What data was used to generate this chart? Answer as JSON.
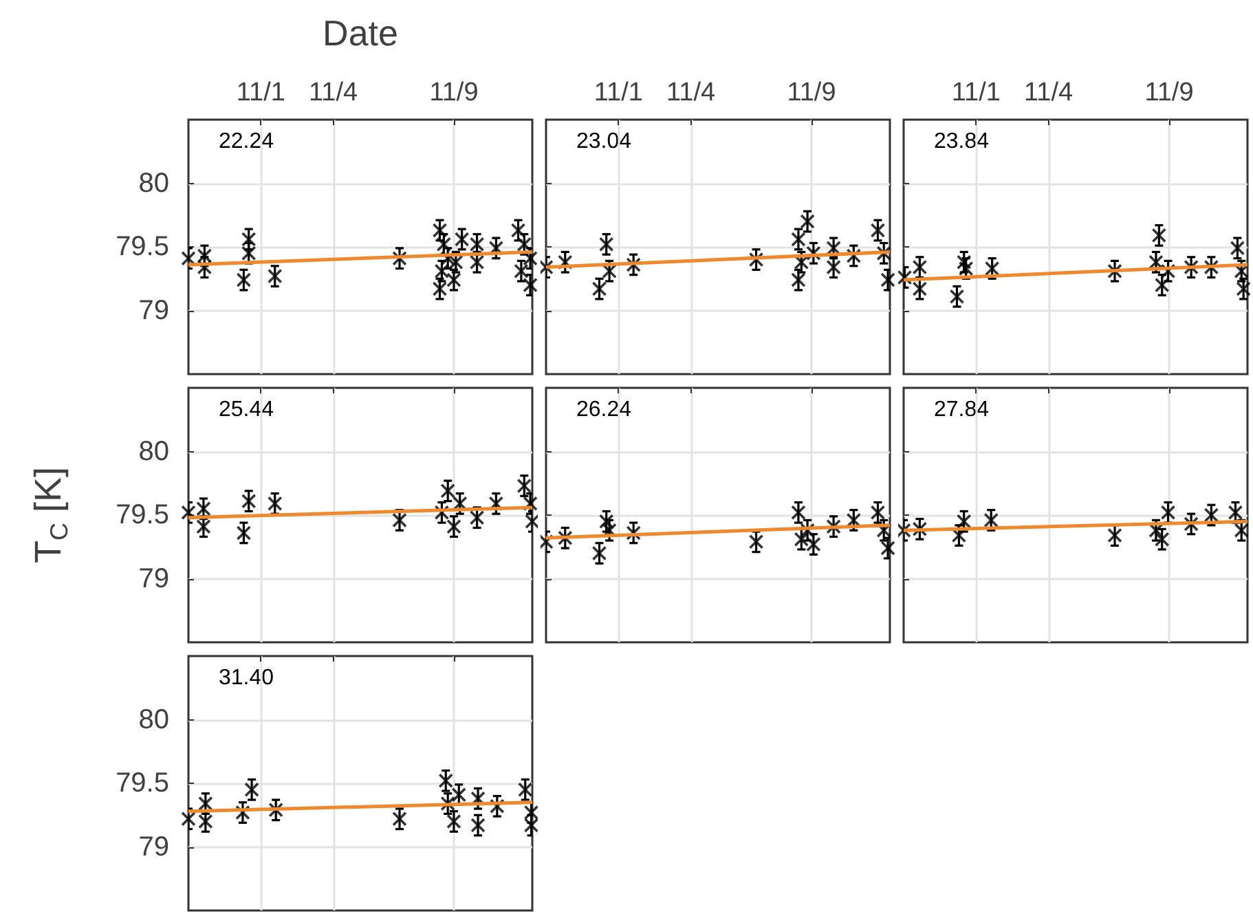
{
  "chart_data": [
    {
      "type": "scatter",
      "xlabel": "Date",
      "annotations": [
        "22.24"
      ],
      "xlim": [
        "--10-29T00:00",
        "--11-12T06:00"
      ],
      "xticks": [
        {
          "value": "--11-01",
          "label": "11/1"
        },
        {
          "value": "--11-04",
          "label": "11/4"
        },
        {
          "value": "--11-09",
          "label": "11/9"
        }
      ],
      "ylim": [
        78.5,
        80.5
      ],
      "yticks": [
        79,
        79.5,
        80
      ],
      "grid": true,
      "series": [
        {
          "marker": "cross",
          "color": "#000000",
          "x": [
            "--10-29T00:00",
            "--10-29T16:00",
            "--10-29T16:00",
            "--10-31T07:00",
            "--10-31T12:00",
            "--10-31T12:00",
            "--11-01T14:00",
            "--11-06T18:00",
            "--11-08T10:00",
            "--11-08T14:00",
            "--11-08T18:00",
            "--11-08T12:00",
            "--11-09T02:00",
            "--11-08T10:00",
            "--11-09T08:00",
            "--11-09T00:00",
            "--11-09T23:00",
            "--11-09T23:00",
            "--11-10T18:00",
            "--11-11T16:00",
            "--11-11T22:00",
            "--11-12T04:00",
            "--11-12T04:00",
            "--11-11T19:00"
          ],
          "values": [
            79.41,
            79.43,
            79.34,
            79.24,
            79.56,
            79.45,
            79.27,
            79.41,
            79.63,
            79.52,
            79.41,
            79.31,
            79.38,
            79.17,
            79.56,
            79.24,
            79.52,
            79.38,
            79.49,
            79.63,
            79.52,
            79.41,
            79.2,
            79.31
          ],
          "errors": [
            0.08,
            0.08,
            0.08,
            0.08,
            0.08,
            0.08,
            0.08,
            0.08,
            0.08,
            0.08,
            0.08,
            0.08,
            0.08,
            0.08,
            0.08,
            0.08,
            0.08,
            0.08,
            0.08,
            0.08,
            0.08,
            0.08,
            0.08,
            0.08
          ]
        },
        {
          "type": "line",
          "color": "#ee8a2d",
          "line_style": "solid",
          "x": [
            "--10-29T00:00",
            "--11-12T06:00"
          ],
          "values": [
            79.36,
            79.46
          ]
        }
      ]
    },
    {
      "type": "scatter",
      "annotations": [
        "23.04"
      ],
      "tick_labels": "x",
      "xlim": [
        "--10-29T00:00",
        "--11-12T06:00"
      ],
      "xticks": [
        {
          "value": "--11-01",
          "label": "11/1"
        },
        {
          "value": "--11-04",
          "label": "11/4"
        },
        {
          "value": "--11-09",
          "label": "11/9"
        }
      ],
      "ylim": [
        78.5,
        80.5
      ],
      "yticks": [
        79,
        79.5,
        80
      ],
      "grid": true,
      "series": [
        {
          "marker": "cross",
          "color": "#000000",
          "x": [
            "--10-29T00:00",
            "--10-29T19:00",
            "--10-31T05:00",
            "--10-31T12:00",
            "--10-31T15:00",
            "--11-01T15:00",
            "--11-06T17:00",
            "--11-08T11:00",
            "--11-08T20:00",
            "--11-08T14:00",
            "--11-08T11:00",
            "--11-09T02:00",
            "--11-09T22:00",
            "--11-09T22:00",
            "--11-10T18:00",
            "--11-11T18:00",
            "--11-12T00:00",
            "--11-12T04:00"
          ],
          "values": [
            79.34,
            79.38,
            79.17,
            79.52,
            79.31,
            79.36,
            79.4,
            79.56,
            79.7,
            79.38,
            79.24,
            79.45,
            79.49,
            79.34,
            79.43,
            79.63,
            79.45,
            79.24
          ],
          "errors": [
            0.08,
            0.08,
            0.08,
            0.08,
            0.08,
            0.08,
            0.08,
            0.08,
            0.08,
            0.08,
            0.08,
            0.08,
            0.08,
            0.08,
            0.08,
            0.08,
            0.08,
            0.08
          ]
        },
        {
          "type": "line",
          "color": "#ee8a2d",
          "line_style": "solid",
          "x": [
            "--10-29T00:00",
            "--11-12T06:00"
          ],
          "values": [
            79.34,
            79.46
          ]
        }
      ]
    },
    {
      "type": "scatter",
      "annotations": [
        "23.84"
      ],
      "tick_labels": "x",
      "xlim": [
        "--10-29T00:00",
        "--11-12T06:00"
      ],
      "xticks": [
        {
          "value": "--11-01",
          "label": "11/1"
        },
        {
          "value": "--11-04",
          "label": "11/4"
        },
        {
          "value": "--11-09",
          "label": "11/9"
        }
      ],
      "ylim": [
        78.5,
        80.5
      ],
      "yticks": [
        79,
        79.5,
        80
      ],
      "grid": true,
      "series": [
        {
          "marker": "cross",
          "color": "#000000",
          "x": [
            "--10-29T01:00",
            "--10-29T16:00",
            "--10-29T16:00",
            "--10-31T05:00",
            "--10-31T12:00",
            "--10-31T14:00",
            "--11-01T16:00",
            "--11-06T18:00",
            "--11-08T14:00",
            "--11-08T11:00",
            "--11-08T17:00",
            "--11-08T23:00",
            "--11-09T22:00",
            "--11-10T18:00",
            "--11-11T20:00",
            "--11-12T00:00",
            "--11-12T02:00"
          ],
          "values": [
            79.26,
            79.34,
            79.17,
            79.11,
            79.38,
            79.33,
            79.33,
            79.31,
            79.59,
            79.38,
            79.2,
            79.31,
            79.34,
            79.34,
            79.49,
            79.31,
            79.17
          ],
          "errors": [
            0.08,
            0.08,
            0.08,
            0.08,
            0.08,
            0.08,
            0.08,
            0.08,
            0.08,
            0.08,
            0.08,
            0.08,
            0.08,
            0.08,
            0.08,
            0.08,
            0.08
          ]
        },
        {
          "type": "line",
          "color": "#ee8a2d",
          "line_style": "solid",
          "x": [
            "--10-29T00:00",
            "--11-12T06:00"
          ],
          "values": [
            79.24,
            79.36
          ]
        }
      ]
    },
    {
      "type": "scatter",
      "ylabel": "T$_{C}$ [K]",
      "annotations": [
        "25.44"
      ],
      "tick_labels": "y",
      "xlim": [
        "--10-29T00:00",
        "--11-12T06:00"
      ],
      "xticks": [
        "--11-01",
        "--11-04",
        "--11-09"
      ],
      "ylim": [
        78.5,
        80.5
      ],
      "yticks": [
        79,
        79.5,
        80
      ],
      "grid": true,
      "series": [
        {
          "marker": "cross",
          "color": "#000000",
          "x": [
            "--10-29T00:00",
            "--10-29T15:00",
            "--10-29T15:00",
            "--10-31T07:00",
            "--10-31T12:00",
            "--11-01T14:00",
            "--11-06T18:00",
            "--11-08T18:00",
            "--11-08T12:00",
            "--11-09T00:00",
            "--11-09T06:00",
            "--11-09T23:00",
            "--11-10T18:00",
            "--11-11T22:00",
            "--11-12T04:00",
            "--11-12T06:00"
          ],
          "values": [
            79.52,
            79.55,
            79.41,
            79.36,
            79.61,
            79.59,
            79.46,
            79.69,
            79.52,
            79.41,
            79.59,
            79.48,
            79.59,
            79.73,
            79.59,
            79.45
          ],
          "errors": [
            0.08,
            0.08,
            0.08,
            0.08,
            0.08,
            0.08,
            0.08,
            0.08,
            0.08,
            0.08,
            0.08,
            0.08,
            0.08,
            0.08,
            0.08,
            0.08
          ]
        },
        {
          "type": "line",
          "color": "#ee8a2d",
          "line_style": "solid",
          "x": [
            "--10-29T00:00",
            "--11-12T06:00"
          ],
          "values": [
            79.48,
            79.56
          ]
        }
      ]
    },
    {
      "type": "scatter",
      "annotations": [
        "26.24"
      ],
      "tick_labels": false,
      "xlim": [
        "--10-29T00:00",
        "--11-12T06:00"
      ],
      "xticks": [
        "--11-01",
        "--11-04",
        "--11-09"
      ],
      "ylim": [
        78.5,
        80.5
      ],
      "yticks": [
        79,
        79.5,
        80
      ],
      "grid": true,
      "series": [
        {
          "marker": "cross",
          "color": "#000000",
          "x": [
            "--10-29T00:00",
            "--10-29T19:00",
            "--10-31T05:00",
            "--10-31T12:00",
            "--10-31T15:00",
            "--11-01T15:00",
            "--11-06T17:00",
            "--11-08T11:00",
            "--11-08T20:00",
            "--11-09T02:00",
            "--11-08T14:00",
            "--11-09T22:00",
            "--11-10T18:00",
            "--11-11T18:00",
            "--11-12T00:00",
            "--11-12T04:00"
          ],
          "values": [
            79.29,
            79.32,
            79.2,
            79.45,
            79.38,
            79.36,
            79.29,
            79.52,
            79.38,
            79.27,
            79.31,
            79.41,
            79.46,
            79.52,
            79.38,
            79.24
          ],
          "errors": [
            0.08,
            0.08,
            0.08,
            0.08,
            0.08,
            0.08,
            0.08,
            0.08,
            0.08,
            0.08,
            0.08,
            0.08,
            0.08,
            0.08,
            0.08,
            0.08
          ]
        },
        {
          "type": "line",
          "color": "#ee8a2d",
          "line_style": "solid",
          "x": [
            "--10-29T00:00",
            "--11-12T06:00"
          ],
          "values": [
            79.32,
            79.42
          ]
        }
      ]
    },
    {
      "type": "scatter",
      "annotations": [
        "27.84"
      ],
      "tick_labels": false,
      "xlim": [
        "--10-29T00:00",
        "--11-12T06:00"
      ],
      "xticks": [
        "--11-01",
        "--11-04",
        "--11-09"
      ],
      "ylim": [
        78.5,
        80.5
      ],
      "yticks": [
        79,
        79.5,
        80
      ],
      "grid": true,
      "series": [
        {
          "marker": "cross",
          "color": "#000000",
          "x": [
            "--10-29T00:00",
            "--10-29T16:00",
            "--10-31T07:00",
            "--10-31T12:00",
            "--11-01T15:00",
            "--11-06T18:00",
            "--11-08T23:00",
            "--11-08T11:00",
            "--11-08T17:00",
            "--11-09T22:00",
            "--11-10T18:00",
            "--11-11T18:00",
            "--11-12T00:00"
          ],
          "values": [
            79.38,
            79.39,
            79.34,
            79.45,
            79.46,
            79.34,
            79.52,
            79.38,
            79.31,
            79.43,
            79.5,
            79.52,
            79.38
          ],
          "errors": [
            0.08,
            0.08,
            0.08,
            0.08,
            0.08,
            0.08,
            0.08,
            0.08,
            0.08,
            0.08,
            0.08,
            0.08,
            0.08
          ]
        },
        {
          "type": "line",
          "color": "#ee8a2d",
          "line_style": "solid",
          "x": [
            "--10-29T00:00",
            "--11-12T06:00"
          ],
          "values": [
            79.38,
            79.45
          ]
        }
      ]
    },
    {
      "type": "scatter",
      "annotations": [
        "31.40"
      ],
      "tick_labels": "y",
      "xlim": [
        "--10-29T00:00",
        "--11-12T06:00"
      ],
      "xticks": [
        "--11-01",
        "--11-04",
        "--11-09"
      ],
      "ylim": [
        78.5,
        80.5
      ],
      "yticks": [
        79,
        79.5,
        80
      ],
      "grid": true,
      "series": [
        {
          "marker": "cross",
          "color": "#000000",
          "x": [
            "--10-29T00:00",
            "--10-29T17:00",
            "--10-29T17:00",
            "--10-31T06:00",
            "--10-31T15:00",
            "--11-01T15:00",
            "--11-06T18:00",
            "--11-08T16:00",
            "--11-08T18:00",
            "--11-09T00:00",
            "--11-09T05:00",
            "--11-10T00:00",
            "--11-10T00:00",
            "--11-10T19:00",
            "--11-11T23:00",
            "--11-12T05:00",
            "--11-12T05:00"
          ],
          "values": [
            79.22,
            79.2,
            79.34,
            79.27,
            79.45,
            79.29,
            79.22,
            79.52,
            79.34,
            79.2,
            79.41,
            79.38,
            79.17,
            79.32,
            79.45,
            79.27,
            79.17
          ],
          "errors": [
            0.08,
            0.08,
            0.08,
            0.08,
            0.08,
            0.08,
            0.08,
            0.08,
            0.08,
            0.08,
            0.08,
            0.08,
            0.08,
            0.08,
            0.08,
            0.08,
            0.08
          ]
        },
        {
          "type": "line",
          "color": "#ee8a2d",
          "line_style": "solid",
          "x": [
            "--10-29T00:00",
            "--11-12T06:00"
          ],
          "values": [
            79.28,
            79.35
          ]
        }
      ]
    }
  ]
}
